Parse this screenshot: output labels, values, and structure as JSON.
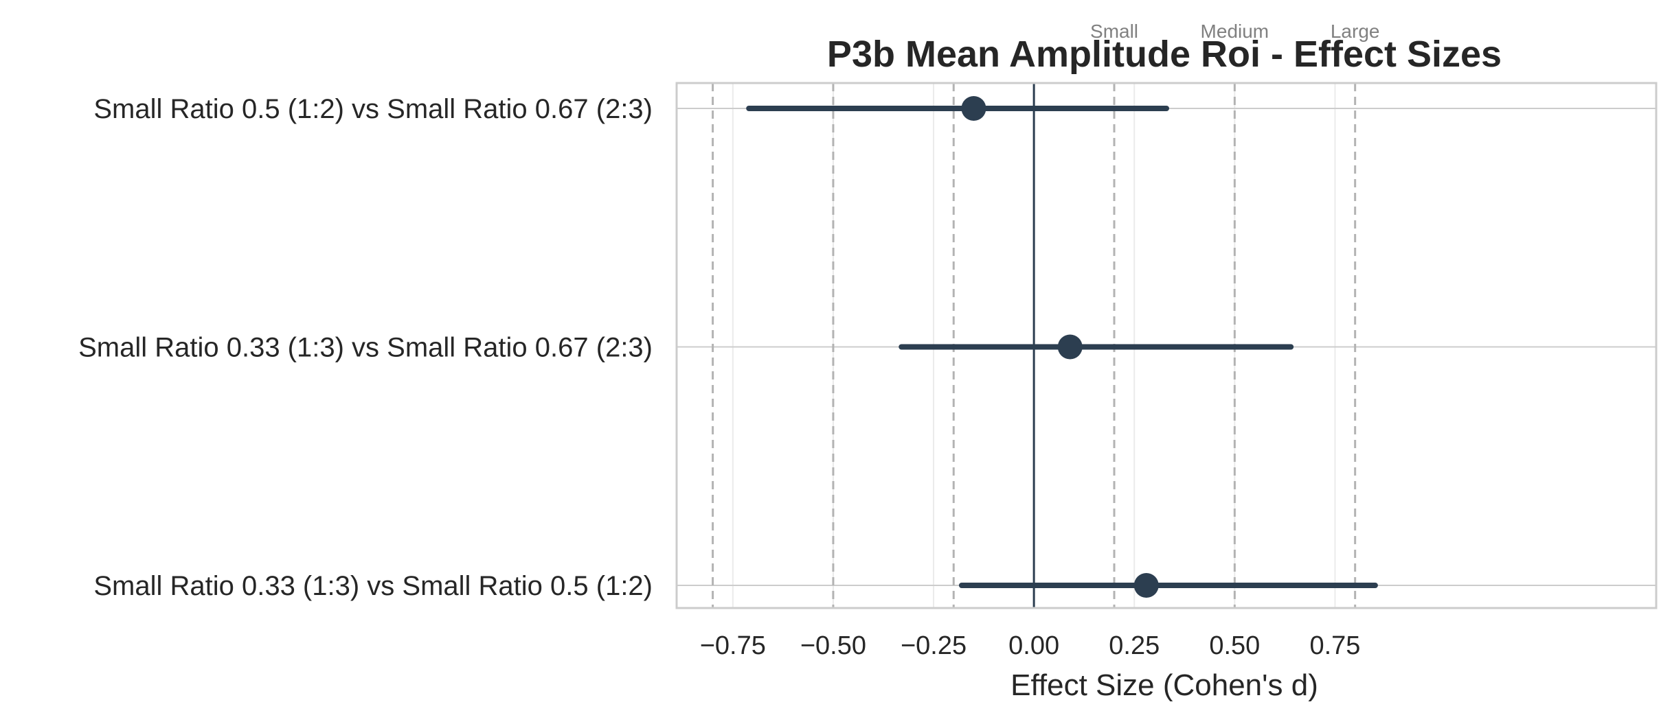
{
  "chart_data": {
    "type": "scatter",
    "title": "P3b Mean Amplitude Roi - Effect Sizes",
    "xlabel": "Effect Size (Cohen's d)",
    "ylabel": "",
    "xlim": [
      -0.89,
      1.55
    ],
    "x_ticks": [
      "−0.75",
      "−0.50",
      "−0.25",
      "0.00",
      "0.25",
      "0.50",
      "0.75"
    ],
    "x_tick_values": [
      -0.75,
      -0.5,
      -0.25,
      0.0,
      0.25,
      0.5,
      0.75
    ],
    "grid": true,
    "zero_line": 0,
    "reference_lines": [
      {
        "value": -0.8
      },
      {
        "value": -0.5
      },
      {
        "value": -0.2
      },
      {
        "value": 0.2,
        "label": "Small"
      },
      {
        "value": 0.5,
        "label": "Medium"
      },
      {
        "value": 0.8,
        "label": "Large"
      }
    ],
    "comparisons": [
      {
        "label": "Small Ratio 0.5 (1:2) vs Small Ratio 0.67 (2:3)",
        "d": -0.15,
        "ci_low": -0.71,
        "ci_high": 0.33
      },
      {
        "label": "Small Ratio 0.33 (1:3) vs Small Ratio 0.67 (2:3)",
        "d": 0.09,
        "ci_low": -0.33,
        "ci_high": 0.64
      },
      {
        "label": "Small Ratio 0.33 (1:3) vs Small Ratio 0.5 (1:2)",
        "d": 0.28,
        "ci_low": -0.18,
        "ci_high": 0.85
      }
    ],
    "colors": {
      "point": "#2c3e50",
      "zero_line": "#2c3e50",
      "grid": "#ebebeb",
      "reference_line": "#b3b3b3",
      "axes_edge": "#cccccc"
    }
  }
}
